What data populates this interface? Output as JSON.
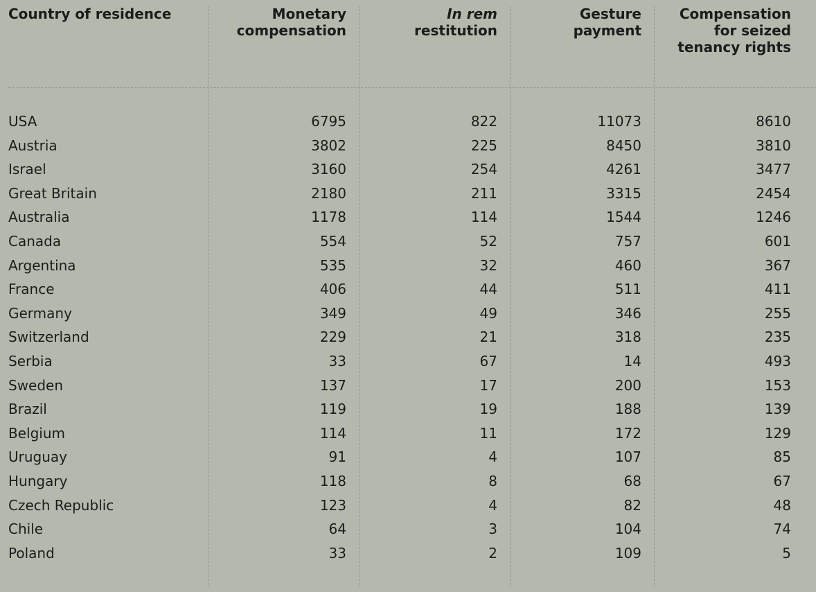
{
  "table": {
    "headers": [
      "Country of residence",
      "Monetary compensation",
      {
        "emphasis": "In rem",
        "text": "restitution"
      },
      "Gesture payment",
      "Compensation for seized tenancy rights"
    ],
    "rows": [
      [
        "USA",
        6795,
        822,
        11073,
        8610
      ],
      [
        "Austria",
        3802,
        225,
        8450,
        3810
      ],
      [
        "Israel",
        3160,
        254,
        4261,
        3477
      ],
      [
        "Great Britain",
        2180,
        211,
        3315,
        2454
      ],
      [
        "Australia",
        1178,
        114,
        1544,
        1246
      ],
      [
        "Canada",
        554,
        52,
        757,
        601
      ],
      [
        "Argentina",
        535,
        32,
        460,
        367
      ],
      [
        "France",
        406,
        44,
        511,
        411
      ],
      [
        "Germany",
        349,
        49,
        346,
        255
      ],
      [
        "Switzerland",
        229,
        21,
        318,
        235
      ],
      [
        "Serbia",
        33,
        67,
        14,
        493
      ],
      [
        "Sweden",
        137,
        17,
        200,
        153
      ],
      [
        "Brazil",
        119,
        19,
        188,
        139
      ],
      [
        "Belgium",
        114,
        11,
        172,
        129
      ],
      [
        "Uruguay",
        91,
        4,
        107,
        85
      ],
      [
        "Hungary",
        118,
        8,
        68,
        67
      ],
      [
        "Czech Republic",
        123,
        4,
        82,
        48
      ],
      [
        "Chile",
        64,
        3,
        104,
        74
      ],
      [
        "Poland",
        33,
        2,
        109,
        5
      ]
    ]
  }
}
